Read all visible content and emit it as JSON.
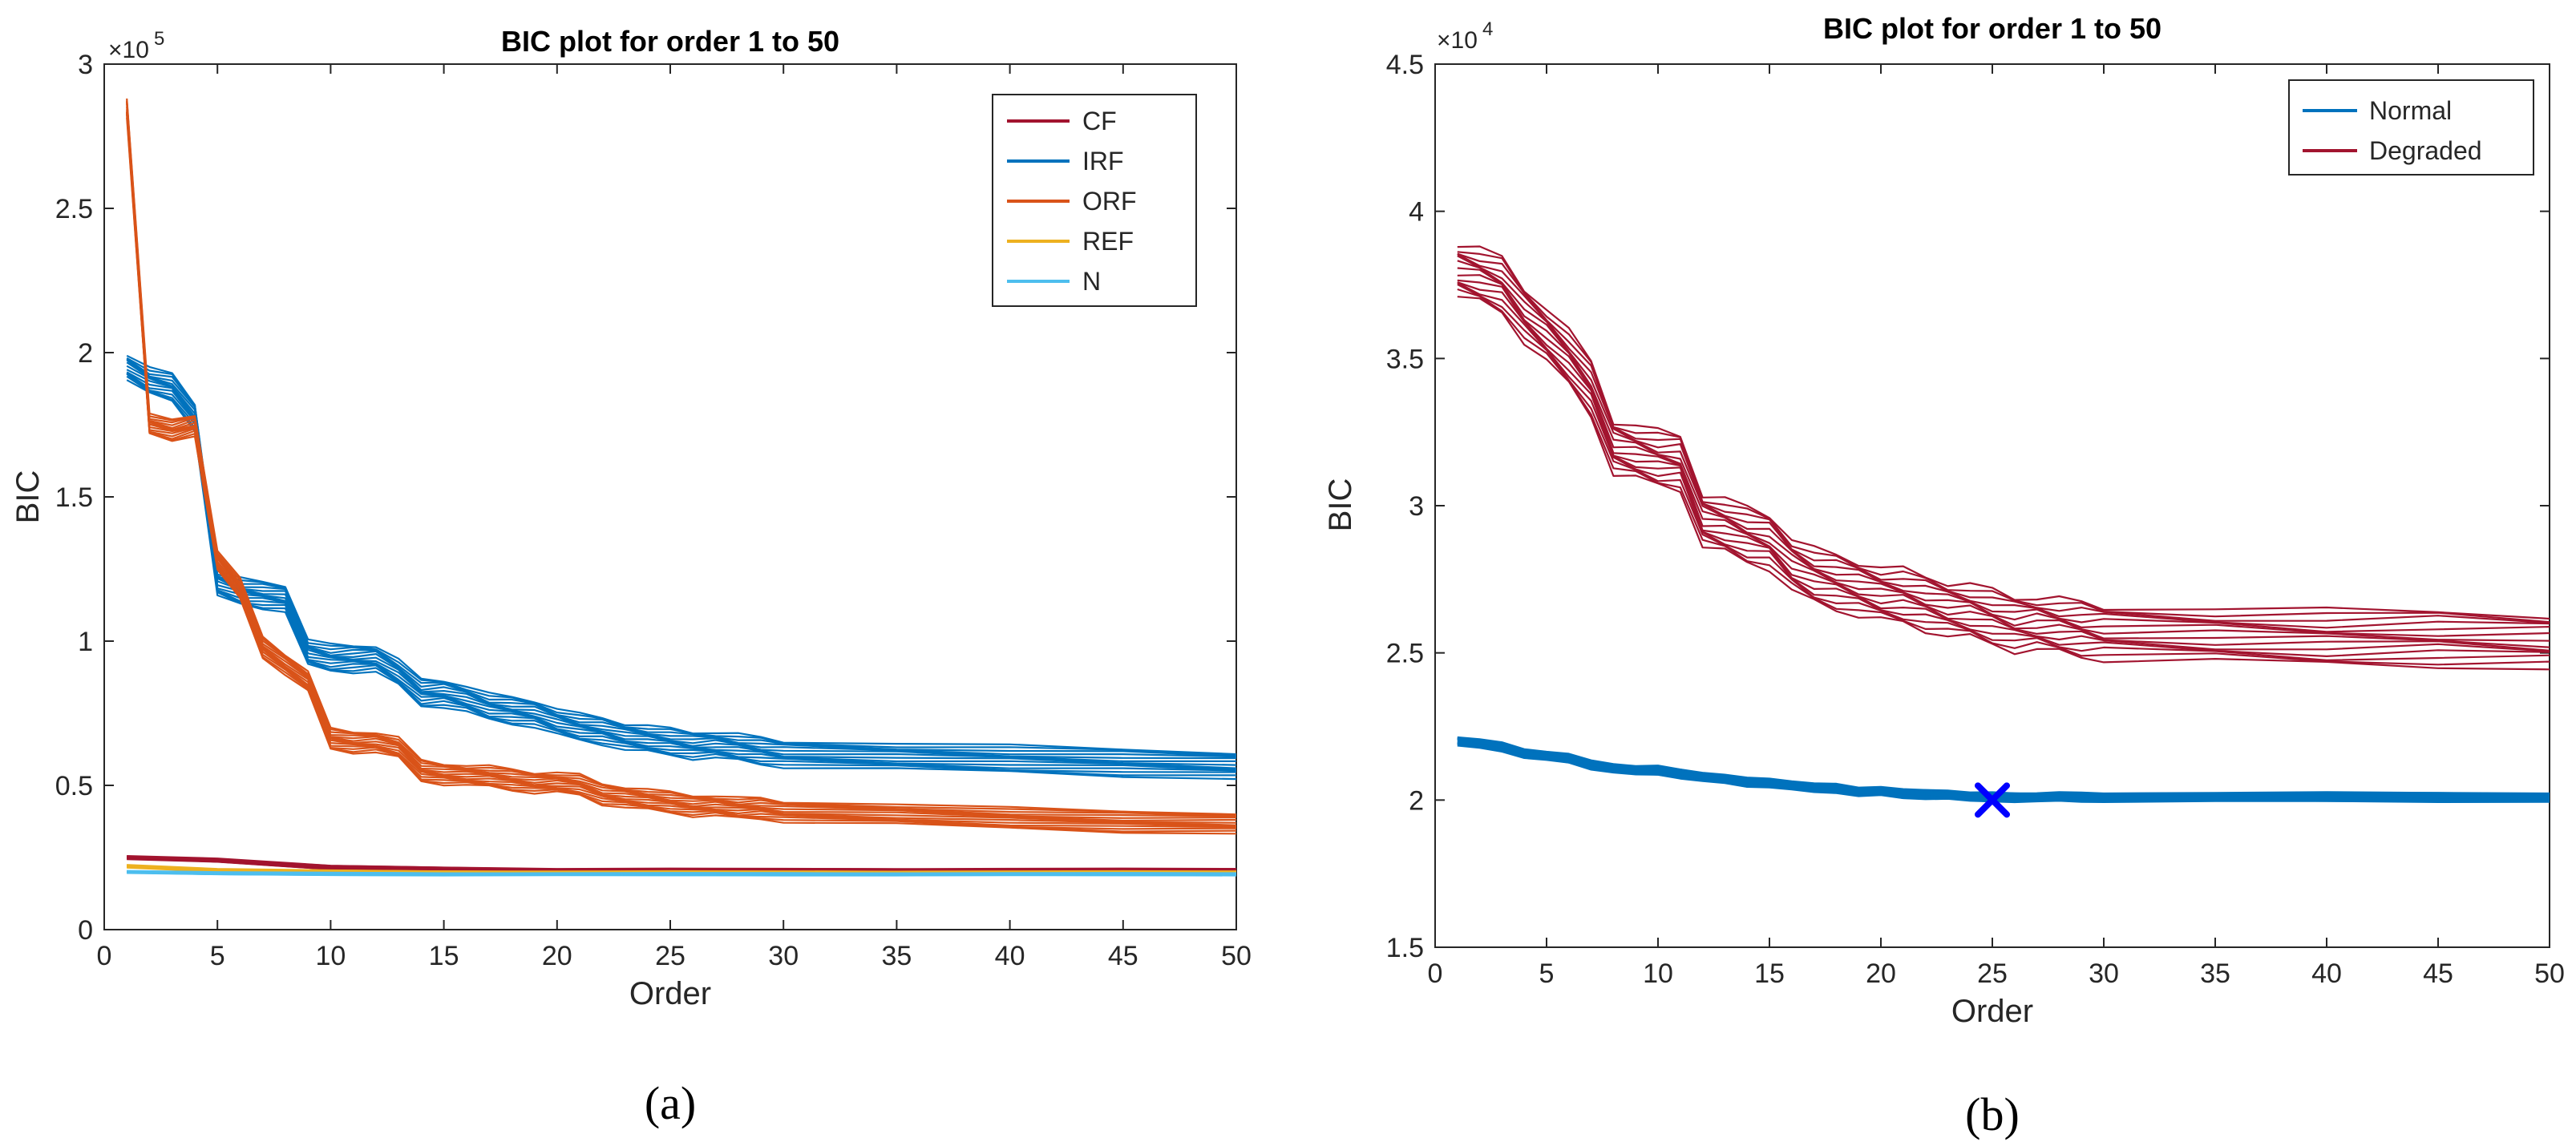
{
  "chart_data": [
    {
      "type": "line",
      "panel_label": "(a)",
      "title": "BIC plot for order 1 to 50",
      "xlabel": "Order",
      "ylabel": "BIC",
      "xlim": [
        0,
        50
      ],
      "ylim": [
        0,
        3
      ],
      "y_multiplier_label": "×10",
      "y_multiplier_exp": "5",
      "x_ticks": [
        0,
        5,
        10,
        15,
        20,
        25,
        30,
        35,
        40,
        45,
        50
      ],
      "x_tick_labels": [
        "0",
        "5",
        "10",
        "15",
        "20",
        "25",
        "30",
        "35",
        "40",
        "45",
        "50"
      ],
      "y_ticks": [
        0,
        0.5,
        1,
        1.5,
        2,
        2.5,
        3
      ],
      "y_tick_labels": [
        "0",
        "0.5",
        "1",
        "1.5",
        "2",
        "2.5",
        "3"
      ],
      "legend_position": "top-right",
      "series": [
        {
          "name": "CF",
          "color": "#A2142F",
          "band_width": 0.012,
          "x": [
            1,
            5,
            10,
            15,
            20,
            25,
            30,
            35,
            40,
            45,
            50
          ],
          "y": [
            0.25,
            0.24,
            0.215,
            0.21,
            0.205,
            0.205,
            0.205,
            0.205,
            0.205,
            0.205,
            0.205
          ]
        },
        {
          "name": "IRF",
          "color": "#0072BD",
          "band_width": 0.09,
          "x": [
            1,
            2,
            3,
            4,
            5,
            6,
            7,
            8,
            9,
            10,
            11,
            12,
            13,
            14,
            15,
            16,
            17,
            18,
            19,
            20,
            21,
            22,
            23,
            24,
            25,
            26,
            27,
            28,
            29,
            30,
            35,
            40,
            45,
            50
          ],
          "y": [
            1.95,
            1.9,
            1.88,
            1.78,
            1.2,
            1.17,
            1.16,
            1.15,
            0.96,
            0.94,
            0.94,
            0.94,
            0.89,
            0.82,
            0.82,
            0.8,
            0.77,
            0.76,
            0.75,
            0.72,
            0.7,
            0.69,
            0.67,
            0.66,
            0.65,
            0.64,
            0.64,
            0.63,
            0.62,
            0.61,
            0.6,
            0.59,
            0.58,
            0.57
          ]
        },
        {
          "name": "ORF",
          "color": "#D95319",
          "band_width": 0.07,
          "x": [
            1,
            2,
            3,
            4,
            5,
            6,
            7,
            8,
            9,
            10,
            11,
            12,
            13,
            14,
            15,
            16,
            17,
            18,
            19,
            20,
            21,
            22,
            23,
            24,
            25,
            26,
            27,
            28,
            29,
            30,
            35,
            40,
            45,
            50
          ],
          "y": [
            2.85,
            1.75,
            1.73,
            1.75,
            1.28,
            1.18,
            0.98,
            0.92,
            0.86,
            0.66,
            0.65,
            0.65,
            0.63,
            0.55,
            0.54,
            0.535,
            0.53,
            0.52,
            0.51,
            0.51,
            0.5,
            0.47,
            0.46,
            0.45,
            0.44,
            0.43,
            0.43,
            0.42,
            0.42,
            0.41,
            0.4,
            0.385,
            0.375,
            0.37
          ]
        },
        {
          "name": "REF",
          "color": "#EDB120",
          "band_width": 0.01,
          "x": [
            1,
            5,
            10,
            15,
            20,
            25,
            30,
            35,
            40,
            45,
            50
          ],
          "y": [
            0.22,
            0.205,
            0.2,
            0.198,
            0.197,
            0.197,
            0.197,
            0.197,
            0.197,
            0.197,
            0.197
          ]
        },
        {
          "name": "N",
          "color": "#4DBEEE",
          "band_width": 0.008,
          "x": [
            1,
            5,
            10,
            15,
            20,
            25,
            30,
            35,
            40,
            45,
            50
          ],
          "y": [
            0.2,
            0.195,
            0.193,
            0.192,
            0.192,
            0.192,
            0.192,
            0.192,
            0.192,
            0.192,
            0.192
          ]
        }
      ]
    },
    {
      "type": "line",
      "panel_label": "(b)",
      "title": "BIC plot for order 1 to 50",
      "xlabel": "Order",
      "ylabel": "BIC",
      "xlim": [
        0,
        50
      ],
      "ylim": [
        1.5,
        4.5
      ],
      "y_multiplier_label": "×10",
      "y_multiplier_exp": "4",
      "x_ticks": [
        0,
        5,
        10,
        15,
        20,
        25,
        30,
        35,
        40,
        45,
        50
      ],
      "x_tick_labels": [
        "0",
        "5",
        "10",
        "15",
        "20",
        "25",
        "30",
        "35",
        "40",
        "45",
        "50"
      ],
      "y_ticks": [
        1.5,
        2,
        2.5,
        3,
        3.5,
        4,
        4.5
      ],
      "y_tick_labels": [
        "1.5",
        "2",
        "2.5",
        "3",
        "3.5",
        "4",
        "4.5"
      ],
      "legend_position": "top-right",
      "series": [
        {
          "name": "Normal",
          "color": "#0072BD",
          "band_width": 0.03,
          "x": [
            1,
            2,
            3,
            4,
            5,
            6,
            7,
            8,
            9,
            10,
            11,
            12,
            13,
            14,
            15,
            16,
            17,
            18,
            19,
            20,
            21,
            22,
            23,
            24,
            25,
            26,
            27,
            28,
            29,
            30,
            35,
            40,
            45,
            50
          ],
          "y": [
            2.2,
            2.19,
            2.18,
            2.16,
            2.15,
            2.14,
            2.12,
            2.11,
            2.1,
            2.1,
            2.09,
            2.08,
            2.07,
            2.06,
            2.06,
            2.05,
            2.04,
            2.04,
            2.03,
            2.03,
            2.02,
            2.02,
            2.02,
            2.01,
            2.01,
            2.01,
            2.01,
            2.01,
            2.01,
            2.01,
            2.01,
            2.01,
            2.01,
            2.01
          ]
        },
        {
          "name": "Degraded",
          "color": "#A2142F",
          "band_width": 0.18,
          "x": [
            1,
            2,
            3,
            4,
            5,
            6,
            7,
            8,
            9,
            10,
            11,
            12,
            13,
            14,
            15,
            16,
            17,
            18,
            19,
            20,
            21,
            22,
            23,
            24,
            25,
            26,
            27,
            28,
            29,
            30,
            35,
            40,
            45,
            50
          ],
          "y": [
            3.8,
            3.78,
            3.75,
            3.65,
            3.58,
            3.5,
            3.4,
            3.2,
            3.18,
            3.16,
            3.15,
            2.95,
            2.93,
            2.9,
            2.88,
            2.8,
            2.76,
            2.74,
            2.72,
            2.7,
            2.69,
            2.67,
            2.65,
            2.64,
            2.62,
            2.6,
            2.6,
            2.59,
            2.58,
            2.57,
            2.56,
            2.55,
            2.55,
            2.54
          ]
        }
      ],
      "marker": {
        "x": 25,
        "y": 2.0,
        "symbol": "x",
        "color": "#0000FF"
      }
    }
  ]
}
